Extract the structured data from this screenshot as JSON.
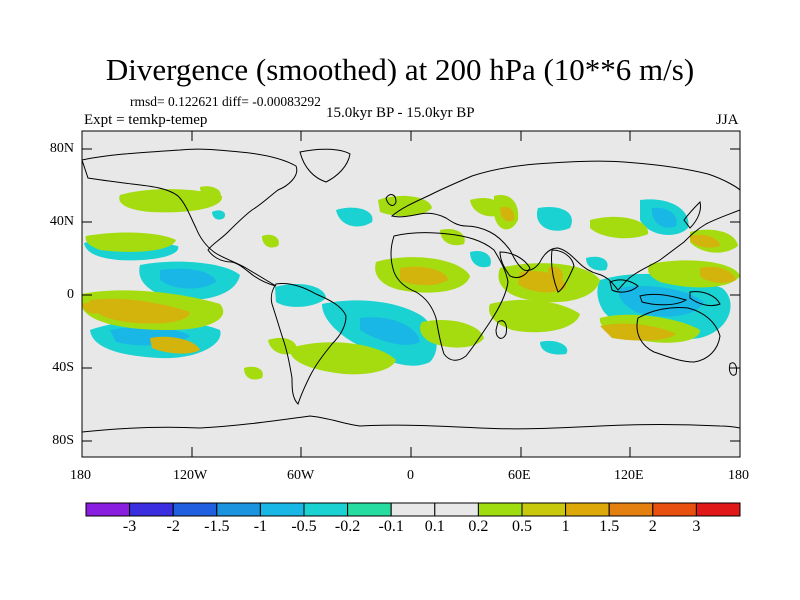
{
  "title": "Divergence (smoothed) at 200 hPa (10**6 m/s)",
  "stats": "rmsd= 0.122621 diff= -0.00083292",
  "experiment": "Expt = temkp-temep",
  "period": "15.0kyr BP - 15.0kyr BP",
  "season": "JJA",
  "y_ticks": [
    "80N",
    "40N",
    "0",
    "40S",
    "80S"
  ],
  "x_ticks": [
    "180",
    "120W",
    "60W",
    "0",
    "60E",
    "120E",
    "180"
  ],
  "colorbar": {
    "labels": [
      "-3",
      "-2",
      "-1.5",
      "-1",
      "-0.5",
      "-0.2",
      "-0.1",
      "0.1",
      "0.2",
      "0.5",
      "1",
      "1.5",
      "2",
      "3"
    ],
    "colors": [
      "#8a1ee0",
      "#3a2ee0",
      "#1f5fe0",
      "#1b94df",
      "#19b7e6",
      "#1ad2d2",
      "#26dca0",
      "#e8e8e8",
      "#9fdc10",
      "#c8c80c",
      "#dca80a",
      "#e48010",
      "#e85010",
      "#e01818"
    ]
  },
  "colors": {
    "ocean_bg": "#e8e8e8",
    "neg_weak": "#1ad2d2",
    "neg_mid": "#1fc8e0",
    "pos_weak": "#a5dc10",
    "pos_mid": "#d2b40c"
  }
}
